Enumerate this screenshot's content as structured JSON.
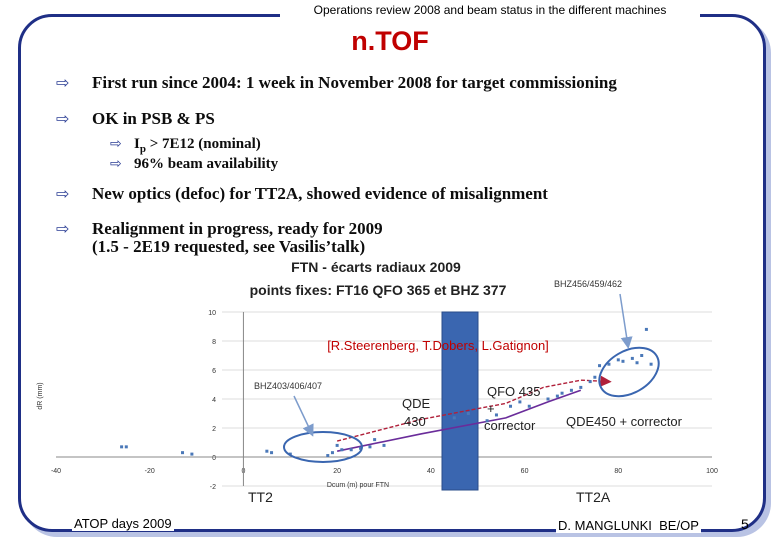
{
  "header": {
    "text": "Operations review 2008 and beam status in the different machines"
  },
  "title": "n.TOF",
  "bullets": [
    {
      "text": "First run since 2004: 1 week in November 2008 for target commissioning"
    },
    {
      "text": "OK in PSB & PS",
      "sub": [
        {
          "pre": "I",
          "subscript": "p",
          "post": " > 7E12 (nominal)"
        },
        {
          "text": "96% beam availability"
        }
      ]
    },
    {
      "text": "New optics (defoc) for TT2A, showed evidence of misalignment"
    },
    {
      "text": "Realignment in progress, ready for 2009",
      "line2": "(1.5 - 2E19 requested, see Vasilis’talk)"
    }
  ],
  "chart_data": {
    "type": "scatter",
    "title": "FTN - écarts radiaux 2009",
    "subtitle": "points fixes: FT16 QFO 365 et BHZ 377",
    "xlabel": "Dcum (m) pour FTN",
    "ylabel": "dR (mm)",
    "xlim": [
      -40,
      100
    ],
    "ylim": [
      -2,
      10
    ],
    "x_ticks": [
      "-40",
      "-20",
      "0",
      "20",
      "40",
      "60",
      "80",
      "100"
    ],
    "y_ticks": [
      "-2",
      "0",
      "2",
      "4",
      "6",
      "8",
      "10"
    ],
    "grid": true,
    "points": [
      [
        -26,
        0.7
      ],
      [
        -25,
        0.7
      ],
      [
        -13,
        0.3
      ],
      [
        -11,
        0.2
      ],
      [
        5,
        0.4
      ],
      [
        6,
        0.3
      ],
      [
        10,
        0.2
      ],
      [
        18,
        0.1
      ],
      [
        19,
        0.3
      ],
      [
        20,
        0.8
      ],
      [
        21,
        0.5
      ],
      [
        23,
        0.5
      ],
      [
        25,
        0.6
      ],
      [
        27,
        0.7
      ],
      [
        28,
        1.2
      ],
      [
        30,
        0.8
      ],
      [
        45,
        2.7
      ],
      [
        48,
        3.0
      ],
      [
        52,
        2.5
      ],
      [
        54,
        2.9
      ],
      [
        57,
        3.5
      ],
      [
        59,
        3.8
      ],
      [
        61,
        3.5
      ],
      [
        65,
        4.0
      ],
      [
        67,
        4.2
      ],
      [
        68,
        4.4
      ],
      [
        70,
        4.6
      ],
      [
        72,
        4.8
      ],
      [
        74,
        5.2
      ],
      [
        75,
        5.5
      ],
      [
        76,
        6.3
      ],
      [
        78,
        6.4
      ],
      [
        80,
        6.7
      ],
      [
        81,
        6.6
      ],
      [
        83,
        6.8
      ],
      [
        84,
        6.5
      ],
      [
        85,
        7.0
      ],
      [
        86,
        8.8
      ],
      [
        87,
        6.4
      ]
    ],
    "red_line": [
      [
        20,
        1.1
      ],
      [
        38,
        2.6
      ],
      [
        56,
        3.7
      ],
      [
        64,
        4.8
      ],
      [
        72,
        5.3
      ],
      [
        78,
        5.2
      ]
    ],
    "purple_line": [
      [
        20,
        0.4
      ],
      [
        38,
        1.6
      ],
      [
        56,
        2.7
      ],
      [
        65,
        3.8
      ],
      [
        72,
        4.6
      ]
    ],
    "annotations": [
      {
        "text": "BHZ456/459/462"
      },
      {
        "text": "BHZ403/406/407"
      },
      {
        "text": "QDE",
        "line2": "430"
      },
      {
        "text": "QFO 435",
        "line2": "+",
        "line3": "corrector"
      },
      {
        "text": "QDE450 + corrector"
      },
      {
        "text": "TT2"
      },
      {
        "text": "TT2A"
      }
    ],
    "credits": "[R.Steerenberg, T.Dobers, L.Gatignon]"
  },
  "footer": {
    "left": "ATOP days 2009",
    "right": "D. MANGLUNKI  BE/OP",
    "page": "5"
  },
  "colors": {
    "frame": "#1f2f86",
    "title": "#c00000",
    "arrow": "#2a3d94",
    "box": "#3a66b0",
    "points": "#4a78b8",
    "credits": "#c00000"
  }
}
